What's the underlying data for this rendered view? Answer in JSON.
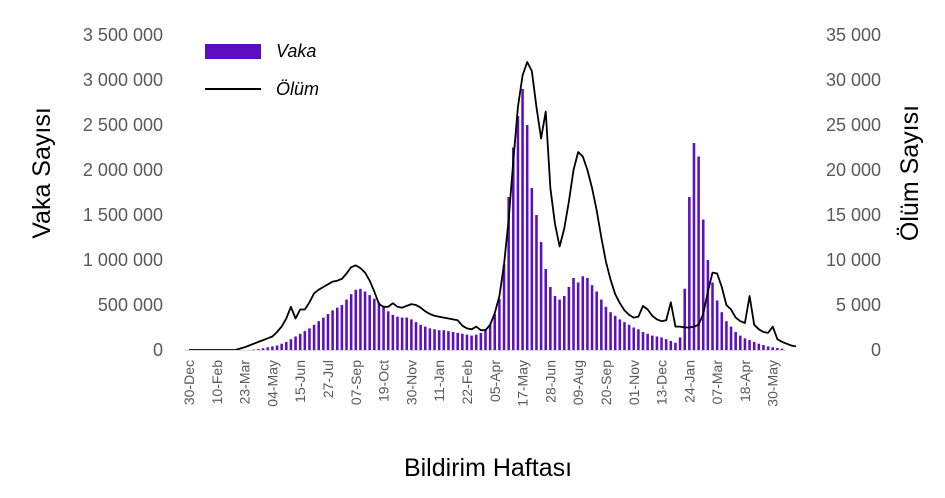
{
  "chart_data": {
    "type": "bar+line",
    "xlabel": "Bildirim Haftası",
    "ylabel_left": "Vaka Sayısı",
    "ylabel_right": "Ölüm Sayısı",
    "ylim_left": [
      0,
      3500000
    ],
    "ylim_right": [
      0,
      35000
    ],
    "yticks_left": [
      "0",
      "500 000",
      "1 000 000",
      "1 500 000",
      "2 000 000",
      "2 500 000",
      "3 000 000",
      "3 500 000"
    ],
    "yticks_right": [
      "0",
      "5 000",
      "10 000",
      "15 000",
      "20 000",
      "25 000",
      "30 000",
      "35 000"
    ],
    "xticks": [
      {
        "label": "30-Dec",
        "week": 0
      },
      {
        "label": "10-Feb",
        "week": 6
      },
      {
        "label": "23-Mar",
        "week": 12
      },
      {
        "label": "04-May",
        "week": 18
      },
      {
        "label": "15-Jun",
        "week": 24
      },
      {
        "label": "27-Jul",
        "week": 30
      },
      {
        "label": "07-Sep",
        "week": 36
      },
      {
        "label": "19-Oct",
        "week": 42
      },
      {
        "label": "30-Nov",
        "week": 48
      },
      {
        "label": "11-Jan",
        "week": 54
      },
      {
        "label": "22-Feb",
        "week": 60
      },
      {
        "label": "05-Apr",
        "week": 66
      },
      {
        "label": "17-May",
        "week": 72
      },
      {
        "label": "28-Jun",
        "week": 78
      },
      {
        "label": "09-Aug",
        "week": 84
      },
      {
        "label": "20-Sep",
        "week": 90
      },
      {
        "label": "01-Nov",
        "week": 96
      },
      {
        "label": "13-Dec",
        "week": 102
      },
      {
        "label": "24-Jan",
        "week": 108
      },
      {
        "label": "07-Mar",
        "week": 114
      },
      {
        "label": "18-Apr",
        "week": 120
      },
      {
        "label": "30-May",
        "week": 126
      }
    ],
    "legend": {
      "position": "top-left",
      "entries": [
        "Vaka",
        "Ölüm"
      ]
    },
    "series": [
      {
        "name": "Vaka",
        "type": "bar",
        "axis": "left",
        "color": "#5B0FBE",
        "values": [
          0,
          0,
          0,
          0,
          0,
          0,
          0,
          0,
          0,
          0,
          0,
          0,
          0,
          0,
          5000,
          10000,
          20000,
          30000,
          40000,
          50000,
          70000,
          90000,
          120000,
          150000,
          180000,
          210000,
          240000,
          280000,
          320000,
          360000,
          400000,
          440000,
          470000,
          500000,
          560000,
          620000,
          670000,
          680000,
          650000,
          610000,
          570000,
          530000,
          480000,
          430000,
          390000,
          370000,
          360000,
          360000,
          340000,
          310000,
          280000,
          260000,
          240000,
          230000,
          220000,
          220000,
          210000,
          200000,
          190000,
          180000,
          170000,
          160000,
          170000,
          190000,
          230000,
          280000,
          400000,
          570000,
          950000,
          1700000,
          2250000,
          2600000,
          2900000,
          2500000,
          1800000,
          1500000,
          1200000,
          900000,
          700000,
          600000,
          560000,
          600000,
          700000,
          800000,
          750000,
          820000,
          800000,
          720000,
          650000,
          560000,
          480000,
          420000,
          380000,
          340000,
          310000,
          280000,
          250000,
          230000,
          200000,
          180000,
          160000,
          150000,
          140000,
          120000,
          100000,
          80000,
          140000,
          680000,
          1700000,
          2300000,
          2150000,
          1450000,
          1000000,
          750000,
          550000,
          420000,
          320000,
          260000,
          200000,
          160000,
          130000,
          110000,
          90000,
          70000,
          55000,
          40000,
          30000,
          22000,
          15000
        ]
      },
      {
        "name": "Ölüm",
        "type": "line",
        "axis": "right",
        "color": "#000000",
        "values": [
          0,
          0,
          0,
          0,
          0,
          0,
          0,
          0,
          0,
          0,
          0,
          150,
          300,
          500,
          700,
          900,
          1100,
          1300,
          1500,
          2000,
          2600,
          3500,
          4800,
          3500,
          4500,
          4500,
          5300,
          6300,
          6700,
          7000,
          7300,
          7600,
          7700,
          7900,
          8500,
          9200,
          9400,
          9100,
          8600,
          7700,
          6500,
          5100,
          4800,
          4800,
          5200,
          4800,
          4700,
          4900,
          5100,
          5000,
          4700,
          4300,
          4000,
          3800,
          3700,
          3600,
          3500,
          3400,
          3300,
          2700,
          2400,
          2300,
          2600,
          2200,
          2200,
          2800,
          4100,
          6000,
          9500,
          14500,
          21000,
          27000,
          30500,
          32000,
          31000,
          27000,
          23500,
          26500,
          18000,
          14000,
          11500,
          13500,
          16500,
          20000,
          22000,
          21500,
          20000,
          18000,
          15500,
          12500,
          9800,
          7800,
          6200,
          5200,
          4400,
          3900,
          3600,
          3700,
          4900,
          4500,
          3800,
          3400,
          3200,
          3300,
          5300,
          2600,
          2600,
          2500,
          2500,
          2600,
          2800,
          4000,
          6500,
          8600,
          8500,
          7000,
          5000,
          4500,
          3600,
          3200,
          3000,
          6000,
          2800,
          2300,
          2000,
          1900,
          2600,
          1200,
          900,
          700,
          500,
          400
        ]
      }
    ]
  }
}
